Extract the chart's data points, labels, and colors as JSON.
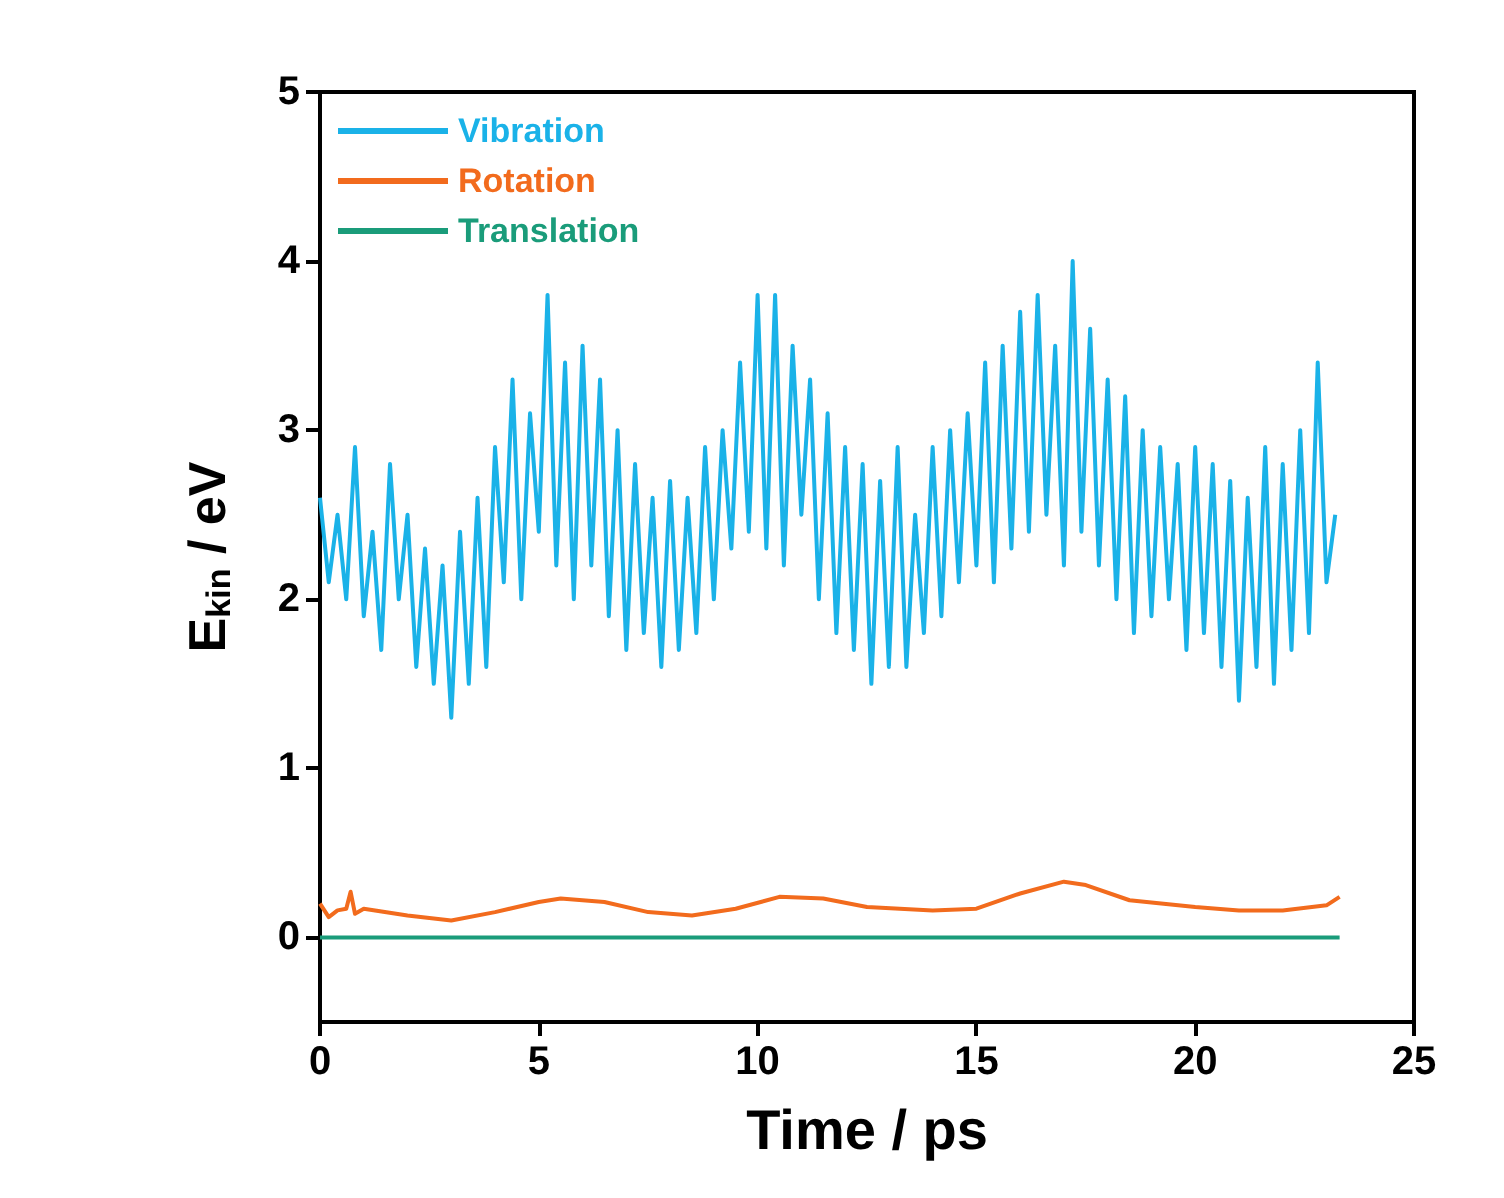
{
  "chart_data": {
    "type": "line",
    "xlabel": "Time / ps",
    "ylabel": "E$_{kin}$ / eV",
    "xlim": [
      0,
      25
    ],
    "xticks": [
      0,
      5,
      10,
      15,
      20,
      25
    ],
    "ylim": [
      -0.5,
      5
    ],
    "yticks": [
      0,
      1,
      2,
      3,
      4,
      5
    ],
    "legend": "top left",
    "grid": false,
    "marker": "none",
    "line_style": "solid",
    "series": [
      {
        "name": "Vibration",
        "color": "#1ab2e8",
        "x": [
          0,
          0.2,
          0.4,
          0.6,
          0.8,
          1,
          1.2,
          1.4,
          1.6,
          1.8,
          2,
          2.2,
          2.4,
          2.6,
          2.8,
          3,
          3.2,
          3.4,
          3.6,
          3.8,
          4,
          4.2,
          4.4,
          4.6,
          4.8,
          5,
          5.2,
          5.4,
          5.6,
          5.8,
          6,
          6.2,
          6.4,
          6.6,
          6.8,
          7,
          7.2,
          7.4,
          7.6,
          7.8,
          8,
          8.2,
          8.4,
          8.6,
          8.8,
          9,
          9.2,
          9.4,
          9.6,
          9.8,
          10,
          10.2,
          10.4,
          10.6,
          10.8,
          11,
          11.2,
          11.4,
          11.6,
          11.8,
          12,
          12.2,
          12.4,
          12.6,
          12.8,
          13,
          13.2,
          13.4,
          13.6,
          13.8,
          14,
          14.2,
          14.4,
          14.6,
          14.8,
          15,
          15.2,
          15.4,
          15.6,
          15.8,
          16,
          16.2,
          16.4,
          16.6,
          16.8,
          17,
          17.2,
          17.4,
          17.6,
          17.8,
          18,
          18.2,
          18.4,
          18.6,
          18.8,
          19,
          19.2,
          19.4,
          19.6,
          19.8,
          20,
          20.2,
          20.4,
          20.6,
          20.8,
          21,
          21.2,
          21.4,
          21.6,
          21.8,
          22,
          22.2,
          22.4,
          22.6,
          22.8,
          23,
          23.2
        ],
        "values": [
          2.6,
          2.1,
          2.5,
          2.0,
          2.9,
          1.9,
          2.4,
          1.7,
          2.8,
          2.0,
          2.5,
          1.6,
          2.3,
          1.5,
          2.2,
          1.3,
          2.4,
          1.5,
          2.6,
          1.6,
          2.9,
          2.1,
          3.3,
          2.0,
          3.1,
          2.4,
          3.8,
          2.2,
          3.4,
          2.0,
          3.5,
          2.2,
          3.3,
          1.9,
          3.0,
          1.7,
          2.8,
          1.8,
          2.6,
          1.6,
          2.7,
          1.7,
          2.6,
          1.8,
          2.9,
          2.0,
          3.0,
          2.3,
          3.4,
          2.4,
          3.8,
          2.3,
          3.8,
          2.2,
          3.5,
          2.5,
          3.3,
          2.0,
          3.1,
          1.8,
          2.9,
          1.7,
          2.8,
          1.5,
          2.7,
          1.6,
          2.9,
          1.6,
          2.5,
          1.8,
          2.9,
          1.9,
          3.0,
          2.1,
          3.1,
          2.2,
          3.4,
          2.1,
          3.5,
          2.3,
          3.7,
          2.4,
          3.8,
          2.5,
          3.5,
          2.2,
          4.0,
          2.4,
          3.6,
          2.2,
          3.3,
          2.0,
          3.2,
          1.8,
          3.0,
          1.9,
          2.9,
          2.0,
          2.8,
          1.7,
          2.9,
          1.8,
          2.8,
          1.6,
          2.7,
          1.4,
          2.6,
          1.6,
          2.9,
          1.5,
          2.8,
          1.7,
          3.0,
          1.8,
          3.4,
          2.1,
          2.5
        ]
      },
      {
        "name": "Rotation",
        "color": "#f26b1d",
        "x": [
          0,
          0.2,
          0.4,
          0.6,
          0.7,
          0.8,
          1,
          2,
          3,
          4,
          5,
          5.5,
          6.5,
          7.5,
          8.5,
          9.5,
          10.5,
          11.5,
          12.5,
          14,
          15,
          16,
          17,
          17.5,
          18.5,
          20,
          21,
          22,
          23,
          23.3
        ],
        "values": [
          0.2,
          0.12,
          0.16,
          0.17,
          0.27,
          0.14,
          0.17,
          0.13,
          0.1,
          0.15,
          0.21,
          0.23,
          0.21,
          0.15,
          0.13,
          0.17,
          0.24,
          0.23,
          0.18,
          0.16,
          0.17,
          0.26,
          0.33,
          0.31,
          0.22,
          0.18,
          0.16,
          0.16,
          0.19,
          0.24
        ]
      },
      {
        "name": "Translation",
        "color": "#1a9c7a",
        "x": [
          0,
          5,
          10,
          15,
          20,
          23.3
        ],
        "values": [
          0,
          0,
          0,
          0,
          0,
          0
        ]
      }
    ]
  }
}
